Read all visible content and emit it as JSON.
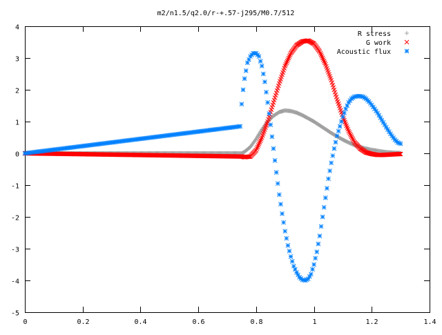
{
  "chart_data": {
    "type": "scatter",
    "title": "m2/n1.5/q2.0/r-+.57-j295/M0.7/512",
    "xlabel": "",
    "ylabel": "",
    "xlim": [
      0,
      1.4
    ],
    "ylim": [
      -5,
      4
    ],
    "x_ticks": [
      "0",
      "0.2",
      "0.4",
      "0.6",
      "0.8",
      "1",
      "1.2",
      "1.4"
    ],
    "y_ticks": [
      "4",
      "3",
      "2",
      "1",
      "0",
      "-1",
      "-2",
      "-3",
      "-4",
      "-5"
    ],
    "grid": false,
    "legend_position": "top-right",
    "series": [
      {
        "name": "R stress",
        "marker": "plus",
        "color": "#a0a0a0",
        "x": [
          0.0,
          0.75,
          0.76,
          0.78,
          0.8,
          0.82,
          0.84,
          0.86,
          0.88,
          0.9,
          0.92,
          0.94,
          0.96,
          0.98,
          1.0,
          1.02,
          1.04,
          1.06,
          1.08,
          1.1,
          1.12,
          1.14,
          1.16,
          1.18,
          1.2,
          1.22,
          1.24,
          1.26,
          1.28,
          1.3
        ],
        "y": [
          0.0,
          0.0,
          0.05,
          0.2,
          0.45,
          0.75,
          1.0,
          1.18,
          1.3,
          1.35,
          1.33,
          1.28,
          1.2,
          1.1,
          1.0,
          0.88,
          0.76,
          0.64,
          0.53,
          0.43,
          0.34,
          0.26,
          0.2,
          0.15,
          0.11,
          0.08,
          0.05,
          0.03,
          0.02,
          0.01
        ]
      },
      {
        "name": "G work",
        "marker": "cross",
        "color": "#ff0000",
        "x": [
          0.0,
          0.75,
          0.76,
          0.78,
          0.8,
          0.82,
          0.84,
          0.86,
          0.88,
          0.9,
          0.92,
          0.94,
          0.96,
          0.98,
          1.0,
          1.02,
          1.04,
          1.06,
          1.08,
          1.1,
          1.12,
          1.14,
          1.16,
          1.18,
          1.2,
          1.22,
          1.24,
          1.26,
          1.28,
          1.3
        ],
        "y": [
          0.0,
          -0.1,
          -0.12,
          -0.1,
          0.1,
          0.5,
          1.0,
          1.6,
          2.2,
          2.75,
          3.15,
          3.4,
          3.52,
          3.55,
          3.45,
          3.2,
          2.8,
          2.3,
          1.7,
          1.15,
          0.7,
          0.35,
          0.15,
          0.03,
          -0.02,
          -0.05,
          -0.05,
          -0.04,
          -0.03,
          -0.02
        ]
      },
      {
        "name": "Acoustic flux",
        "marker": "star",
        "color": "#0080ff",
        "x": [
          0.0,
          0.745,
          0.75,
          0.755,
          0.76,
          0.765,
          0.77,
          0.78,
          0.79,
          0.8,
          0.81,
          0.82,
          0.83,
          0.84,
          0.85,
          0.86,
          0.87,
          0.88,
          0.89,
          0.9,
          0.91,
          0.92,
          0.93,
          0.94,
          0.95,
          0.96,
          0.97,
          0.98,
          0.99,
          1.0,
          1.01,
          1.02,
          1.03,
          1.04,
          1.05,
          1.06,
          1.07,
          1.08,
          1.09,
          1.1,
          1.11,
          1.12,
          1.13,
          1.14,
          1.15,
          1.16,
          1.17,
          1.18,
          1.19,
          1.2,
          1.21,
          1.22,
          1.23,
          1.24,
          1.25,
          1.26,
          1.27,
          1.28,
          1.29,
          1.3
        ],
        "y": [
          0.0,
          0.85,
          1.55,
          2.0,
          2.35,
          2.6,
          2.85,
          3.05,
          3.15,
          3.15,
          3.05,
          2.75,
          2.25,
          1.6,
          0.9,
          0.15,
          -0.6,
          -1.3,
          -1.9,
          -2.45,
          -2.9,
          -3.25,
          -3.55,
          -3.75,
          -3.9,
          -3.98,
          -4.0,
          -3.95,
          -3.8,
          -3.5,
          -3.1,
          -2.6,
          -2.0,
          -1.4,
          -0.8,
          -0.3,
          0.15,
          0.55,
          0.85,
          1.15,
          1.4,
          1.6,
          1.72,
          1.78,
          1.8,
          1.8,
          1.78,
          1.72,
          1.63,
          1.52,
          1.4,
          1.27,
          1.12,
          0.97,
          0.82,
          0.68,
          0.55,
          0.43,
          0.34,
          0.3
        ]
      }
    ]
  }
}
